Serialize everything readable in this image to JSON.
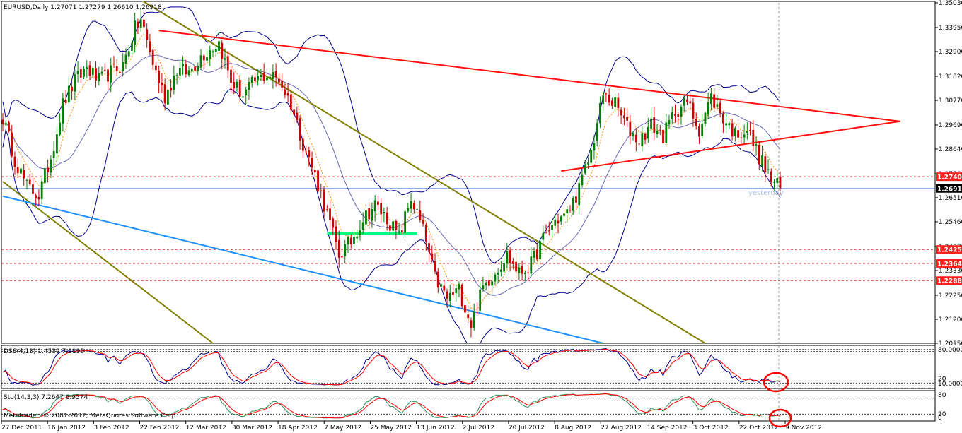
{
  "chart_data": {
    "type": "candlestick",
    "symbol_header": "EURUSD,Daily  1.27071 1.27279 1.26610 1.26918",
    "price_axis": {
      "min": 1.2015,
      "max": 1.3503,
      "ticks": [
        "1.35030",
        "1.33950",
        "1.32900",
        "1.31820",
        "1.30770",
        "1.29690",
        "1.28640",
        "1.27560",
        "1.26510",
        "1.25460",
        "1.24380",
        "1.23330",
        "1.22250",
        "1.21200",
        "1.20150"
      ]
    },
    "price_tags": [
      {
        "price": 1.2743,
        "text": "1.27405",
        "color": "#ff2020"
      },
      {
        "price": 1.26918,
        "text": "1.26918",
        "color": "#000000"
      },
      {
        "price": 1.2425,
        "text": "1.24255",
        "color": "#ff2020"
      },
      {
        "price": 1.2364,
        "text": "1.23643",
        "color": "#ff2020"
      },
      {
        "price": 1.2289,
        "text": "1.22885",
        "color": "#ff2020"
      }
    ],
    "time_axis": [
      "27 Dec 2011",
      "16 Jan 2012",
      "3 Feb 2012",
      "22 Feb 2012",
      "12 Mar 2012",
      "30 Mar 2012",
      "18 Apr 2012",
      "7 May 2012",
      "25 May 2012",
      "13 Jun 2012",
      "2 Jul 2012",
      "20 Jul 2012",
      "8 Aug 2012",
      "27 Aug 2012",
      "14 Sep 2012",
      "3 Oct 2012",
      "22 Oct 2012",
      "9 Nov 2012"
    ],
    "close_anchors": [
      [
        0,
        1.3
      ],
      [
        4,
        1.282
      ],
      [
        8,
        1.27
      ],
      [
        12,
        1.266
      ],
      [
        16,
        1.283
      ],
      [
        20,
        1.306
      ],
      [
        24,
        1.316
      ],
      [
        28,
        1.322
      ],
      [
        32,
        1.316
      ],
      [
        36,
        1.32
      ],
      [
        40,
        1.323
      ],
      [
        44,
        1.339
      ],
      [
        46,
        1.343
      ],
      [
        50,
        1.324
      ],
      [
        54,
        1.309
      ],
      [
        58,
        1.321
      ],
      [
        62,
        1.32
      ],
      [
        66,
        1.327
      ],
      [
        70,
        1.331
      ],
      [
        72,
        1.333
      ],
      [
        76,
        1.316
      ],
      [
        80,
        1.31
      ],
      [
        84,
        1.316
      ],
      [
        88,
        1.319
      ],
      [
        92,
        1.317
      ],
      [
        96,
        1.306
      ],
      [
        100,
        1.289
      ],
      [
        104,
        1.275
      ],
      [
        108,
        1.258
      ],
      [
        112,
        1.24
      ],
      [
        116,
        1.246
      ],
      [
        120,
        1.256
      ],
      [
        124,
        1.262
      ],
      [
        128,
        1.256
      ],
      [
        132,
        1.248
      ],
      [
        136,
        1.265
      ],
      [
        140,
        1.251
      ],
      [
        144,
        1.23
      ],
      [
        148,
        1.221
      ],
      [
        152,
        1.225
      ],
      [
        156,
        1.21
      ],
      [
        160,
        1.226
      ],
      [
        164,
        1.233
      ],
      [
        168,
        1.24
      ],
      [
        172,
        1.232
      ],
      [
        176,
        1.236
      ],
      [
        180,
        1.247
      ],
      [
        184,
        1.255
      ],
      [
        188,
        1.258
      ],
      [
        192,
        1.269
      ],
      [
        196,
        1.285
      ],
      [
        200,
        1.31
      ],
      [
        204,
        1.306
      ],
      [
        208,
        1.296
      ],
      [
        212,
        1.29
      ],
      [
        216,
        1.297
      ],
      [
        220,
        1.292
      ],
      [
        224,
        1.303
      ],
      [
        228,
        1.307
      ],
      [
        232,
        1.295
      ],
      [
        236,
        1.309
      ],
      [
        240,
        1.3
      ],
      [
        244,
        1.293
      ],
      [
        248,
        1.295
      ],
      [
        252,
        1.283
      ],
      [
        256,
        1.273
      ],
      [
        259,
        1.2692
      ]
    ],
    "lines": [
      {
        "name": "resistance",
        "color": "#ff1010",
        "p1": [
          52,
          1.3382
        ],
        "p2": [
          299,
          1.2985
        ]
      },
      {
        "name": "rising-support",
        "color": "#ff1010",
        "p1": [
          186,
          1.2768
        ],
        "p2": [
          299,
          1.2985
        ]
      },
      {
        "name": "channel-upper",
        "color": "#808000",
        "p1": [
          43,
          1.354
        ],
        "p2": [
          234,
          1.2015
        ]
      },
      {
        "name": "channel-lower",
        "color": "#808000",
        "p1": [
          0,
          1.2722
        ],
        "p2": [
          70,
          1.2015
        ]
      },
      {
        "name": "support-blue",
        "color": "#1e90ff",
        "p1": [
          0,
          1.2658
        ],
        "p2": [
          200,
          1.2015
        ]
      },
      {
        "name": "range-box",
        "color": "#00ff7f",
        "p1": [
          108,
          1.2495
        ],
        "p2": [
          138,
          1.2495
        ]
      }
    ],
    "hlines": [
      1.2743,
      1.2425,
      1.2364,
      1.2289
    ],
    "current_price": 1.26918,
    "overlay_text": "yesterday",
    "indicators": [
      {
        "label": "DSS(4,13) 1.4539 7.2195",
        "levels": [
          "80.0000",
          "20",
          "10.0000"
        ],
        "main_color": "#00008b",
        "signal_color": "#ff0000"
      },
      {
        "label": "Sto(14,3,3) 7.2647 6.9574",
        "levels": [
          "80",
          "20",
          "0"
        ],
        "main_color": "#2e8b57",
        "signal_color": "#ff0000"
      }
    ],
    "footer": "Metatrader, © 2001-2012, MetaQuotes Software Corp."
  }
}
